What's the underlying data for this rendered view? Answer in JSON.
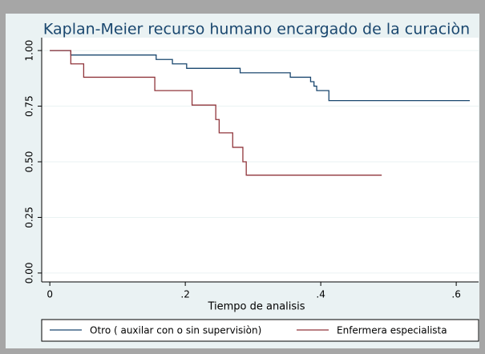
{
  "chart_data": {
    "type": "line",
    "title": "Kaplan-Meier  recurso humano encargado de la curaciòn",
    "x_label": "Tiempo de analisis",
    "xlim": [
      -0.012,
      0.633
    ],
    "ylim": [
      -0.04,
      1.058
    ],
    "xticks": [
      0,
      {
        "value": 0.2,
        "label": ".2"
      },
      {
        "value": 0.4,
        "label": ".4"
      },
      {
        "value": 0.6,
        "label": ".6"
      }
    ],
    "yticks": [
      {
        "value": 0,
        "label": "0.00"
      },
      {
        "value": 0.25,
        "label": "0.25"
      },
      {
        "value": 0.5,
        "label": "0.50"
      },
      {
        "value": 0.75,
        "label": "0.75"
      },
      {
        "value": 1,
        "label": "1.00"
      }
    ],
    "grid": true,
    "legend": "bottom",
    "series": [
      {
        "name": "Otro ( auxilar con o sin supervisiòn)",
        "color": "#1a476f",
        "x": [
          0,
          0.031,
          0.031,
          0.157,
          0.157,
          0.181,
          0.181,
          0.202,
          0.202,
          0.281,
          0.281,
          0.355,
          0.355,
          0.385,
          0.385,
          0.39,
          0.39,
          0.394,
          0.394,
          0.412,
          0.412,
          0.62
        ],
        "values": [
          1,
          1,
          0.98,
          0.98,
          0.96,
          0.96,
          0.94,
          0.94,
          0.92,
          0.92,
          0.9,
          0.9,
          0.88,
          0.88,
          0.86,
          0.86,
          0.84,
          0.84,
          0.82,
          0.82,
          0.775,
          0.775
        ]
      },
      {
        "name": "Enfermera especialista",
        "color": "#90353b",
        "x": [
          0,
          0.031,
          0.031,
          0.05,
          0.05,
          0.155,
          0.155,
          0.21,
          0.21,
          0.245,
          0.245,
          0.25,
          0.25,
          0.27,
          0.27,
          0.285,
          0.285,
          0.29,
          0.29,
          0.49
        ],
        "values": [
          1,
          1,
          0.94,
          0.94,
          0.88,
          0.88,
          0.82,
          0.82,
          0.755,
          0.755,
          0.69,
          0.69,
          0.63,
          0.63,
          0.565,
          0.565,
          0.5,
          0.5,
          0.44,
          0.44
        ]
      }
    ]
  }
}
